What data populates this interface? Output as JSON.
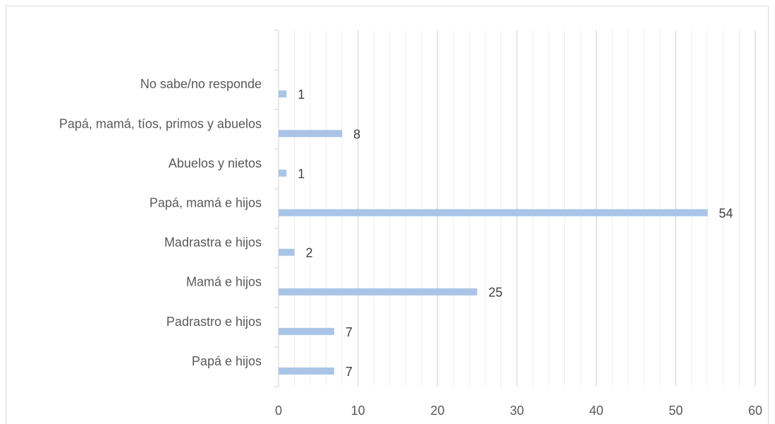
{
  "chart_data": {
    "type": "bar",
    "orientation": "horizontal",
    "categories": [
      "No sabe/no responde",
      "Papá, mamá, tíos, primos y abuelos",
      "Abuelos y nietos",
      "Papá, mamá e hijos",
      "Madrastra e hijos",
      "Mamá e hijos",
      "Padrastro e hijos",
      "Papá e hijos"
    ],
    "values": [
      1,
      8,
      1,
      54,
      2,
      25,
      7,
      7
    ],
    "xlim": [
      0,
      60
    ],
    "xticks": [
      0,
      10,
      20,
      30,
      40,
      50,
      60
    ],
    "minor_grid_step": 2,
    "grid": true,
    "legend": "none",
    "data_labels": true,
    "bar_color": "#a9c4e6",
    "title": "",
    "xlabel": "",
    "ylabel": ""
  }
}
